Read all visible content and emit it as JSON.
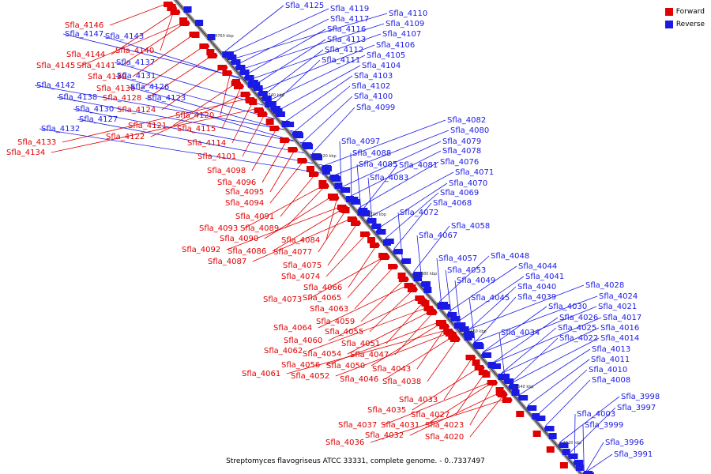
{
  "caption": "Streptomyces flavogriseus ATCC 33331, complete genome. - 0..7337497",
  "legend": {
    "forward": "Forward",
    "reverse": "Reverse",
    "forward_color": "#e00000",
    "reverse_color": "#1a1ae6"
  },
  "ticks": [
    "4760 kbp",
    "4740 kbp",
    "4720 kbp",
    "4700 kbp",
    "4680 kbp",
    "4660 kbp",
    "4640 kbp",
    "4620 kbp"
  ],
  "forward_genes": [
    "Sfla_4146",
    "Sfla_4144",
    "Sfla_4145",
    "Sfla_4141",
    "Sfla_4140",
    "Sfla_4139",
    "Sfla_4136",
    "Sfla_4128",
    "Sfla_4124",
    "Sfla_4121",
    "Sfla_4122",
    "Sfla_4120",
    "Sfla_4115",
    "Sfla_4114",
    "Sfla_4133",
    "Sfla_4134",
    "Sfla_4101",
    "Sfla_4098",
    "Sfla_4096",
    "Sfla_4095",
    "Sfla_4094",
    "Sfla_4091",
    "Sfla_4093",
    "Sfla_4089",
    "Sfla_4090",
    "Sfla_4084",
    "Sfla_4092",
    "Sfla_4086",
    "Sfla_4077",
    "Sfla_4087",
    "Sfla_4075",
    "Sfla_4074",
    "Sfla_4066",
    "Sfla_4073",
    "Sfla_4065",
    "Sfla_4063",
    "Sfla_4059",
    "Sfla_4064",
    "Sfla_4055",
    "Sfla_4060",
    "Sfla_4051",
    "Sfla_4062",
    "Sfla_4054",
    "Sfla_4047",
    "Sfla_4056",
    "Sfla_4050",
    "Sfla_4061",
    "Sfla_4052",
    "Sfla_4046",
    "Sfla_4043",
    "Sfla_4038",
    "Sfla_4033",
    "Sfla_4035",
    "Sfla_4027",
    "Sfla_4037",
    "Sfla_4031",
    "Sfla_4023",
    "Sfla_4032",
    "Sfla_4036",
    "Sfla_4020"
  ],
  "reverse_genes": [
    "Sfla_4125",
    "Sfla_4119",
    "Sfla_4110",
    "Sfla_4117",
    "Sfla_4109",
    "Sfla_4116",
    "Sfla_4107",
    "Sfla_4147",
    "Sfla_4143",
    "Sfla_4113",
    "Sfla_4106",
    "Sfla_4112",
    "Sfla_4105",
    "Sfla_4111",
    "Sfla_4104",
    "Sfla_4137",
    "Sfla_4131",
    "Sfla_4103",
    "Sfla_4142",
    "Sfla_4126",
    "Sfla_4102",
    "Sfla_4138",
    "Sfla_4123",
    "Sfla_4100",
    "Sfla_4130",
    "Sfla_4099",
    "Sfla_4127",
    "Sfla_4132",
    "Sfla_4082",
    "Sfla_4080",
    "Sfla_4079",
    "Sfla_4097",
    "Sfla_4078",
    "Sfla_4088",
    "Sfla_4076",
    "Sfla_4085",
    "Sfla_4081",
    "Sfla_4071",
    "Sfla_4083",
    "Sfla_4070",
    "Sfla_4069",
    "Sfla_4068",
    "Sfla_4072",
    "Sfla_4058",
    "Sfla_4067",
    "Sfla_4048",
    "Sfla_4057",
    "Sfla_4044",
    "Sfla_4053",
    "Sfla_4041",
    "Sfla_4049",
    "Sfla_4040",
    "Sfla_4045",
    "Sfla_4039",
    "Sfla_4028",
    "Sfla_4024",
    "Sfla_4030",
    "Sfla_4021",
    "Sfla_4026",
    "Sfla_4017",
    "Sfla_4025",
    "Sfla_4016",
    "Sfla_4034",
    "Sfla_4022",
    "Sfla_4014",
    "Sfla_4013",
    "Sfla_4011",
    "Sfla_4010",
    "Sfla_4008",
    "Sfla_3998",
    "Sfla_3997",
    "Sfla_4003",
    "Sfla_3999",
    "Sfla_3996",
    "Sfla_3991"
  ]
}
